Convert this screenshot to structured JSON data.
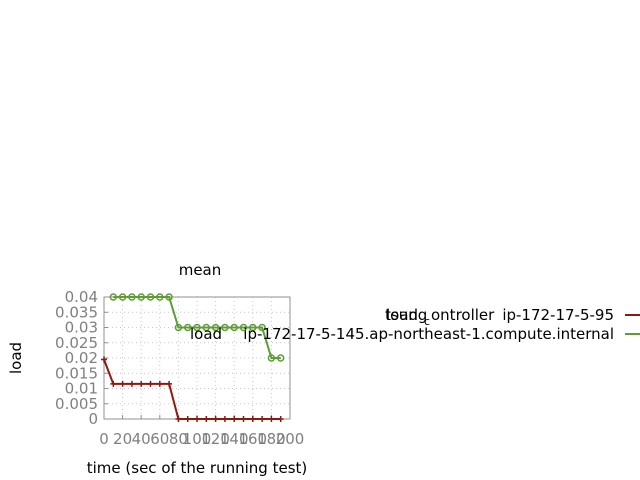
{
  "chart_data": {
    "type": "line",
    "title": "mean",
    "xlabel": "time (sec of the running test)",
    "ylabel": "load",
    "xlim": [
      0,
      200
    ],
    "ylim": [
      0,
      0.04
    ],
    "xticks": [
      0,
      20,
      40,
      60,
      80,
      100,
      120,
      140,
      160,
      180,
      200
    ],
    "xtick_labels": [
      "0",
      "20",
      "40",
      "60",
      "80",
      "100",
      "120",
      "140",
      "160",
      "180",
      "200"
    ],
    "yticks": [
      0,
      0.005,
      0.01,
      0.015,
      0.02,
      0.025,
      0.03,
      0.035,
      0.04
    ],
    "ytick_labels": [
      "0",
      "0.005",
      "0.01",
      "0.015",
      "0.02",
      "0.025",
      "0.03",
      "0.035",
      "0.04"
    ],
    "grid": true,
    "legend_position": "right",
    "series": [
      {
        "name_parts": [
          "load",
          "tsung",
          "c",
          "ontroller",
          "ip-172-17-5-95"
        ],
        "color": "#8b1a0e",
        "marker": "plus",
        "x": [
          0,
          10,
          20,
          30,
          40,
          50,
          60,
          70,
          80,
          90,
          100,
          110,
          120,
          130,
          140,
          150,
          160,
          170,
          180,
          190
        ],
        "values": [
          0.0195,
          0.0115,
          0.0115,
          0.0115,
          0.0115,
          0.0115,
          0.0115,
          0.0115,
          0.0,
          0.0,
          0.0,
          0.0,
          0.0,
          0.0,
          0.0,
          0.0,
          0.0,
          0.0,
          0.0,
          0.0
        ]
      },
      {
        "name_parts": [
          "load",
          "ip-172-17-5-145.ap-northeast-1.compute.internal"
        ],
        "color": "#5e9c36",
        "marker": "circle",
        "x": [
          10,
          20,
          30,
          40,
          50,
          60,
          70,
          80,
          90,
          100,
          110,
          120,
          130,
          140,
          150,
          160,
          170,
          180,
          190
        ],
        "values": [
          0.04,
          0.04,
          0.04,
          0.04,
          0.04,
          0.04,
          0.04,
          0.03,
          0.03,
          0.03,
          0.03,
          0.03,
          0.03,
          0.03,
          0.03,
          0.03,
          0.03,
          0.02,
          0.02
        ]
      }
    ]
  }
}
